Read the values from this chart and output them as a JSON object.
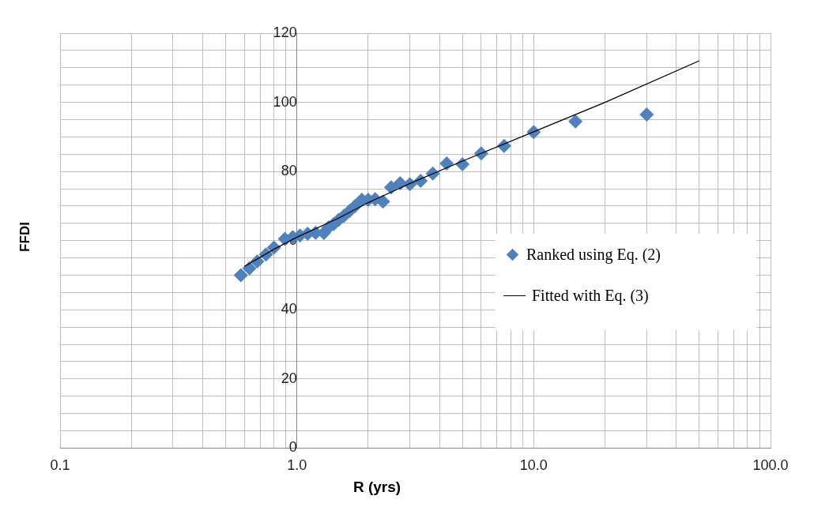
{
  "chart_data": {
    "type": "scatter",
    "xlabel": "R (yrs)",
    "ylabel": "FFDI",
    "log": "x",
    "grid": "xy",
    "legend": "right",
    "marker": "diamond",
    "xlim": [
      0.1,
      100
    ],
    "ylim": [
      0,
      120
    ],
    "xticks": [
      {
        "value": 0.1,
        "label": "0.1"
      },
      {
        "value": 0.2,
        "label": null
      },
      {
        "value": 0.3,
        "label": null
      },
      {
        "value": 0.4,
        "label": null
      },
      {
        "value": 0.5,
        "label": null
      },
      {
        "value": 0.6,
        "label": null
      },
      {
        "value": 0.7,
        "label": null
      },
      {
        "value": 0.8,
        "label": null
      },
      {
        "value": 0.9,
        "label": null
      },
      {
        "value": 1,
        "label": "1.0"
      },
      {
        "value": 2,
        "label": null
      },
      {
        "value": 3,
        "label": null
      },
      {
        "value": 4,
        "label": null
      },
      {
        "value": 5,
        "label": null
      },
      {
        "value": 6,
        "label": null
      },
      {
        "value": 7,
        "label": null
      },
      {
        "value": 8,
        "label": null
      },
      {
        "value": 9,
        "label": null
      },
      {
        "value": 10,
        "label": "10.0"
      },
      {
        "value": 20,
        "label": null
      },
      {
        "value": 30,
        "label": null
      },
      {
        "value": 40,
        "label": null
      },
      {
        "value": 50,
        "label": null
      },
      {
        "value": 60,
        "label": null
      },
      {
        "value": 70,
        "label": null
      },
      {
        "value": 80,
        "label": null
      },
      {
        "value": 90,
        "label": null
      },
      {
        "value": 100,
        "label": "100.0"
      }
    ],
    "yticks": [
      0,
      {
        "value": 5,
        "label": null
      },
      {
        "value": 10,
        "label": null
      },
      {
        "value": 15,
        "label": null
      },
      20,
      {
        "value": 25,
        "label": null
      },
      {
        "value": 30,
        "label": null
      },
      {
        "value": 35,
        "label": null
      },
      40,
      {
        "value": 45,
        "label": null
      },
      {
        "value": 50,
        "label": null
      },
      {
        "value": 55,
        "label": null
      },
      60,
      {
        "value": 65,
        "label": null
      },
      {
        "value": 70,
        "label": null
      },
      {
        "value": 75,
        "label": null
      },
      80,
      {
        "value": 85,
        "label": null
      },
      {
        "value": 90,
        "label": null
      },
      {
        "value": 95,
        "label": null
      },
      100,
      {
        "value": 105,
        "label": null
      },
      {
        "value": 110,
        "label": null
      },
      {
        "value": 115,
        "label": null
      },
      120
    ],
    "series": [
      {
        "name": "Ranked using Eq. (2)",
        "color": "#4f81bd",
        "x": [
          30,
          15,
          10,
          7.5,
          6,
          5,
          4.29,
          3.75,
          3.33,
          3,
          2.73,
          2.5,
          2.31,
          2.14,
          2,
          1.88,
          1.76,
          1.67,
          1.58,
          1.5,
          1.43,
          1.36,
          1.3,
          1.2,
          1.11,
          1.03,
          0.96,
          0.89,
          0.8,
          0.74,
          0.68,
          0.63,
          0.58
        ],
        "values": [
          96.5,
          94.5,
          91.4,
          87.4,
          85.2,
          82.1,
          82.3,
          79.4,
          77.3,
          76.3,
          76.6,
          75.4,
          71.3,
          72,
          71.8,
          71.8,
          70,
          68.6,
          67.2,
          66,
          64.8,
          63.8,
          62.2,
          62.3,
          62,
          61.5,
          61,
          60.5,
          58,
          56,
          54,
          52,
          50
        ]
      },
      {
        "name": "Fitted with Eq. (3)",
        "type": "line",
        "marker": "none",
        "color": "#000000",
        "x": [
          0.6,
          0.8,
          1,
          1.5,
          2,
          3,
          5,
          10,
          20,
          50
        ],
        "values": [
          52.5,
          57.5,
          61,
          66.5,
          71,
          76.5,
          83,
          91.5,
          100,
          112
        ]
      }
    ]
  }
}
